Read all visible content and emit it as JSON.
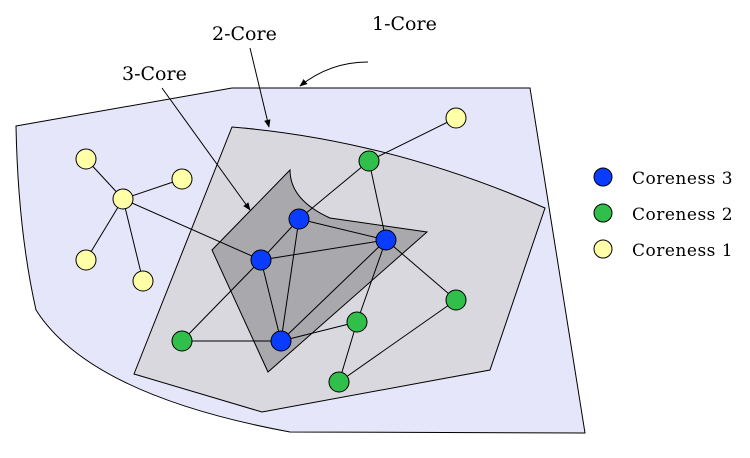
{
  "callouts": {
    "core1": "1-Core",
    "core2": "2-Core",
    "core3": "3-Core"
  },
  "legend": [
    {
      "label": "Coreness 3",
      "color": "#0a3cff"
    },
    {
      "label": "Coreness 2",
      "color": "#2fbf4a"
    },
    {
      "label": "Coreness 1",
      "color": "#ffffa8"
    }
  ],
  "colors": {
    "core1_fill": "#e6e6fa",
    "core2_fill": "#d8d8de",
    "core3_fill": "#a9a9ad",
    "stroke": "#000000"
  }
}
